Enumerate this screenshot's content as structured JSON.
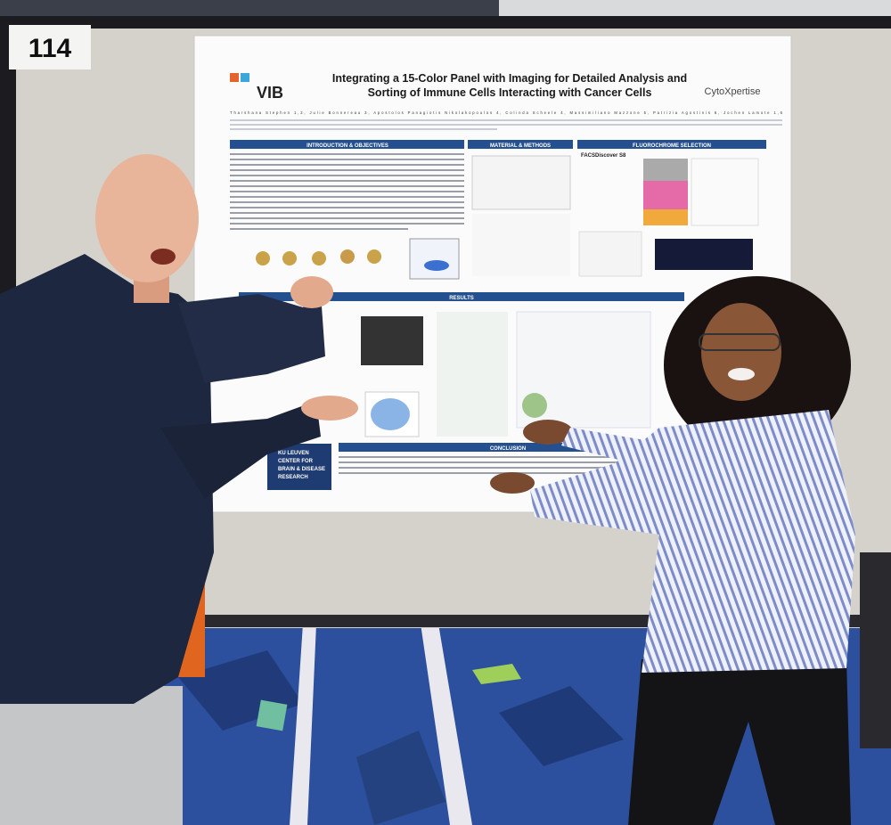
{
  "board_number": "114",
  "poster": {
    "logo_left": "VIB",
    "logo_right": "CytoXpertise",
    "title_lines": [
      "Integrating a 15-Color Panel with Imaging for Detailed Analysis and",
      "Sorting of Immune Cells Interacting with Cancer Cells"
    ],
    "authors": "Tharshana Stephen 1,2, Julie Bonnereau 3, Apostolos Panagiotis Nikolakopoulos 4, Colinda Scheele 4, Massimiliano Mazzone 5, Patrizia Agostinis 6, Jochen Lamote 1,6",
    "sections": [
      "INTRODUCTION & OBJECTIVES",
      "MATERIAL & METHODS",
      "FLUOROCHROME SELECTION",
      "RESULTS",
      "CONCLUSION"
    ],
    "instrument": "FACSDiscover S8",
    "footer_logo": [
      "KU LEUVEN",
      "CENTER FOR",
      "BRAIN & DISEASE",
      "RESEARCH"
    ]
  }
}
